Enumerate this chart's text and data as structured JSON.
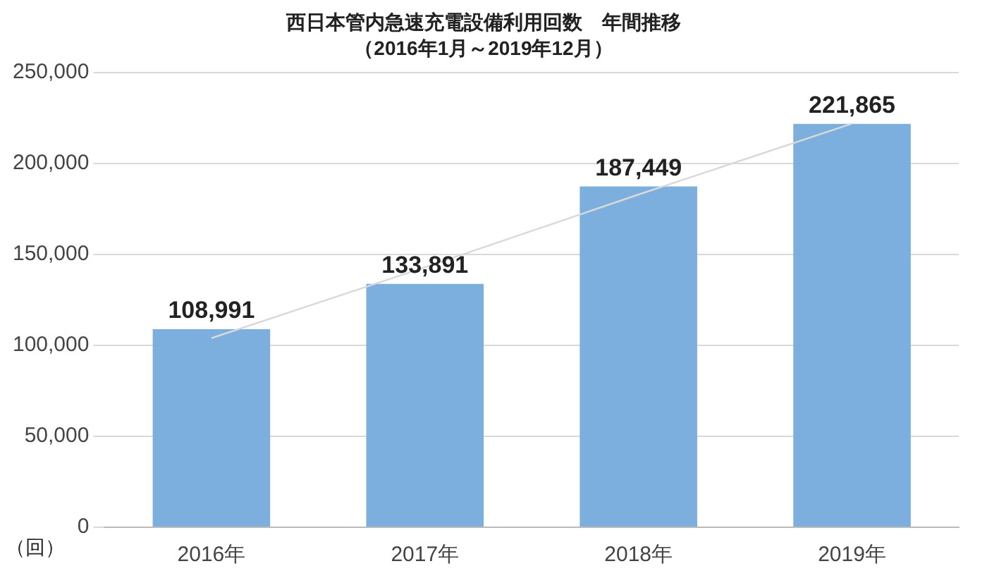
{
  "chart_data": {
    "type": "bar",
    "title": "西日本管内急速充電設備利用回数　年間推移",
    "subtitle": "（2016年1月～2019年12月）",
    "ylabel": "（回）",
    "categories": [
      "2016年",
      "2017年",
      "2018年",
      "2019年"
    ],
    "series": [
      {
        "color": "#7cafde",
        "values": [
          108991,
          133891,
          187449,
          221865
        ],
        "value_labels": [
          "108,991",
          "133,891",
          "187,449",
          "221,865"
        ]
      },
      {
        "type": "line",
        "color": "#d9d9d9",
        "marker": "none",
        "values": [
          104000,
          143000,
          183000,
          222000
        ]
      }
    ],
    "ylim": [
      0,
      250000
    ],
    "yticks": [
      0,
      {
        "value": 50000,
        "label": "50,000"
      },
      {
        "value": 100000,
        "label": "100,000"
      },
      {
        "value": 150000,
        "label": "150,000"
      },
      {
        "value": 200000,
        "label": "200,000"
      },
      {
        "value": 250000,
        "label": "250,000"
      }
    ],
    "grid": "y",
    "legend": false
  }
}
